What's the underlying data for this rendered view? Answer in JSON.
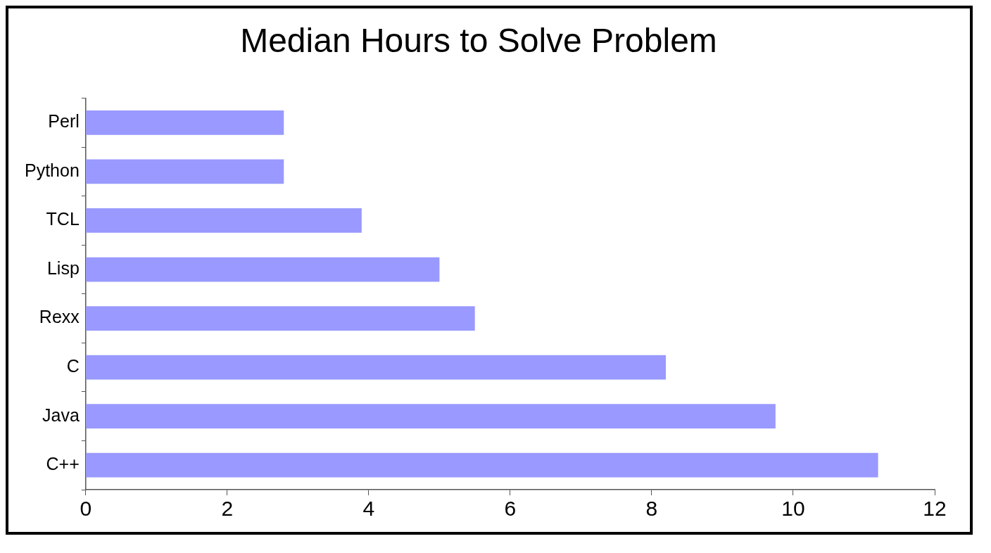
{
  "chart_data": {
    "type": "bar",
    "orientation": "horizontal",
    "title": "Median Hours to Solve Problem",
    "categories": [
      "Perl",
      "Python",
      "TCL",
      "Lisp",
      "Rexx",
      "C",
      "Java",
      "C++"
    ],
    "values": [
      2.8,
      2.8,
      3.9,
      5.0,
      5.5,
      8.2,
      9.75,
      11.2
    ],
    "color": "#9999ff",
    "xlim": [
      0,
      12
    ],
    "xticks": [
      0,
      2,
      4,
      6,
      8,
      10,
      12
    ],
    "grid": false,
    "legend": false
  }
}
